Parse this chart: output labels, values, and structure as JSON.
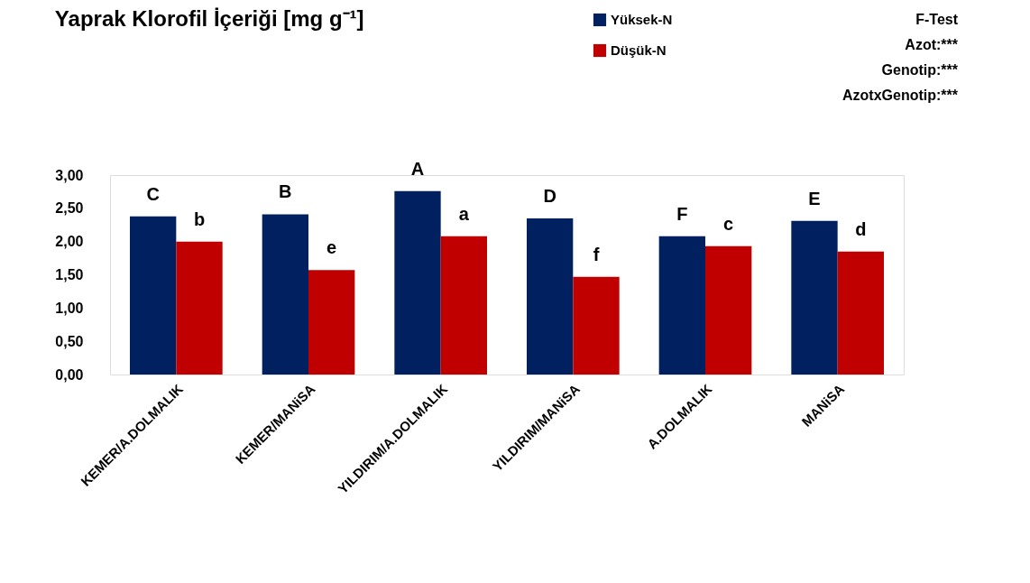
{
  "chart_data": {
    "type": "bar",
    "title": "Yaprak Klorofil İçeriği [mg g⁻¹]",
    "categories": [
      "KEMER/A.DOLMALIK",
      "KEMER/MANiSA",
      "YILDIRIM/A.DOLMALIK",
      "YILDIRIM/MANiSA",
      "A.DOLMALIK",
      "MANiSA"
    ],
    "series": [
      {
        "name": "Yüksek-N",
        "color": "#002060",
        "values": [
          2.38,
          2.41,
          2.76,
          2.35,
          2.08,
          2.31
        ],
        "value_labels": [
          "C",
          "B",
          "A",
          "D",
          "F",
          "E"
        ]
      },
      {
        "name": "Düşük-N",
        "color": "#c00000",
        "values": [
          2.0,
          1.57,
          2.08,
          1.47,
          1.93,
          1.85
        ],
        "value_labels": [
          "b",
          "e",
          "a",
          "f",
          "c",
          "d"
        ]
      }
    ],
    "ylim": [
      0,
      3
    ],
    "yticks": [
      {
        "value": 0,
        "label": "0,00"
      },
      {
        "value": 0.5,
        "label": "0,50"
      },
      {
        "value": 1,
        "label": "1,00"
      },
      {
        "value": 1.5,
        "label": "1,50"
      },
      {
        "value": 2,
        "label": "2,00"
      },
      {
        "value": 2.5,
        "label": "2,50"
      },
      {
        "value": 3,
        "label": "3,00"
      }
    ],
    "grid": false,
    "legend": "top",
    "annotations": [
      "F-Test",
      "Azot:***",
      "Genotip:***",
      "AzotxGenotip:***"
    ]
  }
}
